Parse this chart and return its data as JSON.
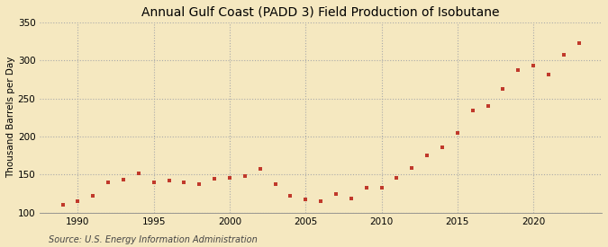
{
  "title": "Annual Gulf Coast (PADD 3) Field Production of Isobutane",
  "ylabel": "Thousand Barrels per Day",
  "source": "Source: U.S. Energy Information Administration",
  "background_color": "#f5e8c0",
  "plot_bg_color": "#f5e8c0",
  "marker_color": "#c0392b",
  "years": [
    1989,
    1990,
    1991,
    1992,
    1993,
    1994,
    1995,
    1996,
    1997,
    1998,
    1999,
    2000,
    2001,
    2002,
    2003,
    2004,
    2005,
    2006,
    2007,
    2008,
    2009,
    2010,
    2011,
    2012,
    2013,
    2014,
    2015,
    2016,
    2017,
    2018,
    2019,
    2020,
    2021,
    2022,
    2023
  ],
  "values": [
    110,
    115,
    122,
    140,
    143,
    151,
    140,
    142,
    140,
    137,
    144,
    146,
    148,
    157,
    137,
    122,
    117,
    115,
    125,
    118,
    133,
    133,
    146,
    159,
    175,
    186,
    205,
    234,
    240,
    263,
    287,
    293,
    282,
    307,
    323
  ],
  "ylim": [
    100,
    350
  ],
  "xlim": [
    1987.5,
    2024.5
  ],
  "yticks": [
    100,
    150,
    200,
    250,
    300,
    350
  ],
  "xticks": [
    1990,
    1995,
    2000,
    2005,
    2010,
    2015,
    2020
  ],
  "grid_color": "#aaaaaa",
  "title_fontsize": 10,
  "label_fontsize": 7.5,
  "tick_fontsize": 7.5,
  "source_fontsize": 7
}
